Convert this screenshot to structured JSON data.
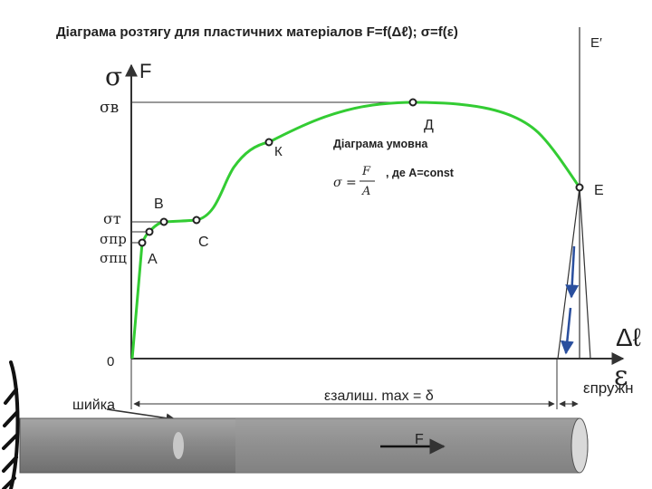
{
  "title": "Діаграма розтягу для пластичних матеріалов F=f(Δℓ); σ=f(ε)",
  "axes": {
    "y_sigma": "σ",
    "y_force": "F",
    "origin": "0",
    "x_elongation": "Δℓ",
    "x_strain": "ε"
  },
  "stress_labels": {
    "sigma_v": "σв",
    "sigma_t": "σт",
    "sigma_pr": "σпр",
    "sigma_pc": "σпц"
  },
  "points": {
    "A": "А",
    "B": "В",
    "C": "С",
    "K": "К",
    "D": "Д",
    "E": "Е",
    "E_prime": "Е′"
  },
  "notes": {
    "conditional_diagram": "Діаграма умовна",
    "formula_lhs": "σ =",
    "formula_num": "F",
    "formula_den": "A",
    "formula_cond": ", де A=const",
    "residual_strain": "εзалиш. max = δ",
    "elastic_strain": "εпружн",
    "neck": "шийка",
    "force": "F"
  },
  "colors": {
    "curve": "#33cc33",
    "axis": "#333333",
    "bar": "#8c8c8c",
    "wall": "#111111"
  }
}
